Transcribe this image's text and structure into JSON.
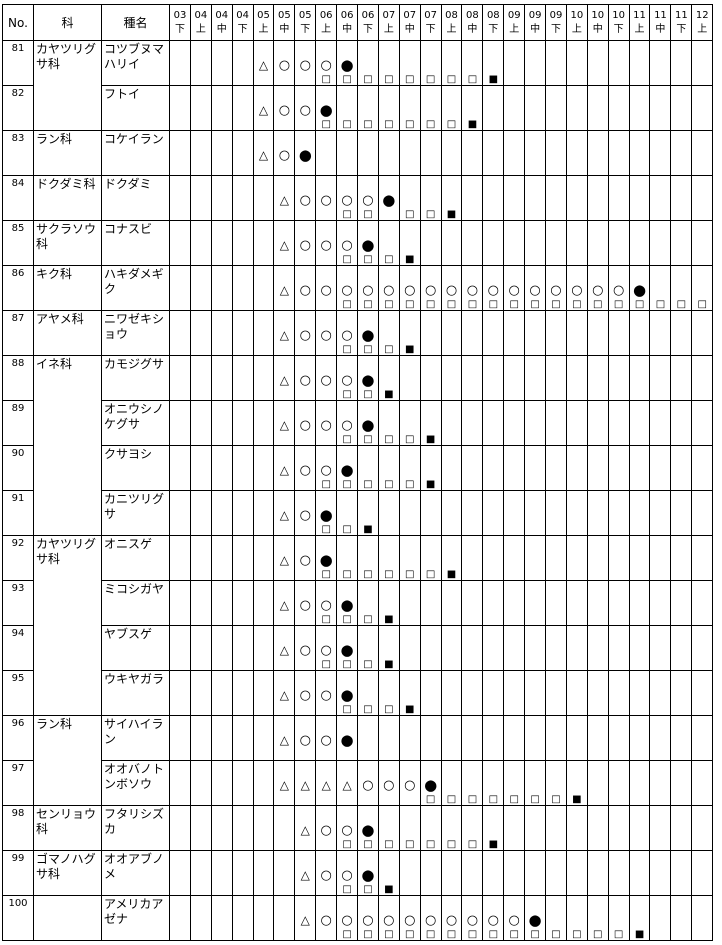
{
  "headers": {
    "no": "No.",
    "family": "科",
    "species": "種名"
  },
  "periods": [
    {
      "m": "03",
      "p": "下"
    },
    {
      "m": "04",
      "p": "上"
    },
    {
      "m": "04",
      "p": "中"
    },
    {
      "m": "04",
      "p": "下"
    },
    {
      "m": "05",
      "p": "上"
    },
    {
      "m": "05",
      "p": "中"
    },
    {
      "m": "05",
      "p": "下"
    },
    {
      "m": "06",
      "p": "上"
    },
    {
      "m": "06",
      "p": "中"
    },
    {
      "m": "06",
      "p": "下"
    },
    {
      "m": "07",
      "p": "上"
    },
    {
      "m": "07",
      "p": "中"
    },
    {
      "m": "07",
      "p": "下"
    },
    {
      "m": "08",
      "p": "上"
    },
    {
      "m": "08",
      "p": "中"
    },
    {
      "m": "08",
      "p": "下"
    },
    {
      "m": "09",
      "p": "上"
    },
    {
      "m": "09",
      "p": "中"
    },
    {
      "m": "09",
      "p": "下"
    },
    {
      "m": "10",
      "p": "上"
    },
    {
      "m": "10",
      "p": "中"
    },
    {
      "m": "10",
      "p": "下"
    },
    {
      "m": "11",
      "p": "上"
    },
    {
      "m": "11",
      "p": "中"
    },
    {
      "m": "11",
      "p": "下"
    },
    {
      "m": "12",
      "p": "上"
    }
  ],
  "rows": [
    {
      "no": "81",
      "family": "カヤツリグサ科",
      "species": "コツブヌマハリイ",
      "family_span": 2,
      "top": "....△○○○●",
      "bottom": ".......□□□□□□□□■"
    },
    {
      "no": "82",
      "species": "フトイ",
      "top": "....△○○●",
      "bottom": ".......□□□□□□□■"
    },
    {
      "no": "83",
      "family": "ラン科",
      "species": "コケイラン",
      "family_span": 1,
      "top": "....△○●",
      "bottom": ""
    },
    {
      "no": "84",
      "family": "ドクダミ科",
      "species": "ドクダミ",
      "family_span": 1,
      "top": ".....△○○○○●",
      "bottom": "........□□.□□■"
    },
    {
      "no": "85",
      "family": "サクラソウ科",
      "species": "コナスビ",
      "family_span": 1,
      "top": ".....△○○○●",
      "bottom": "........□□□■"
    },
    {
      "no": "86",
      "family": "キク科",
      "species": "ハキダメギク",
      "family_span": 1,
      "top": ".....△○○○○○○○○○○○○○○○○●",
      "bottom": "........□□□□□□□□□□□□□□□□□□■"
    },
    {
      "no": "87",
      "family": "アヤメ科",
      "species": "ニワゼキショウ",
      "family_span": 1,
      "top": ".....△○○○●",
      "bottom": "........□□□■"
    },
    {
      "no": "88",
      "family": "イネ科",
      "species": "カモジグサ",
      "family_span": 4,
      "top": ".....△○○○●",
      "bottom": "........□□■"
    },
    {
      "no": "89",
      "species": "オニウシノケグサ",
      "top": ".....△○○○●",
      "bottom": "........□□□□■"
    },
    {
      "no": "90",
      "species": "クサヨシ",
      "top": ".....△○○●",
      "bottom": ".......□□□□□■"
    },
    {
      "no": "91",
      "species": "カニツリグサ",
      "top": ".....△○●",
      "bottom": ".......□□■"
    },
    {
      "no": "92",
      "family": "カヤツリグサ科",
      "species": "オニスゲ",
      "family_span": 4,
      "top": ".....△○●",
      "bottom": ".......□□□□□□■"
    },
    {
      "no": "93",
      "species": "ミコシガヤ",
      "top": ".....△○○●",
      "bottom": ".......□□□■"
    },
    {
      "no": "94",
      "species": "ヤブスゲ",
      "top": ".....△○○●",
      "bottom": ".......□□□■"
    },
    {
      "no": "95",
      "species": "ウキヤガラ",
      "top": ".....△○○●",
      "bottom": "........□□□■"
    },
    {
      "no": "96",
      "family": "ラン科",
      "species": "サイハイラン",
      "family_span": 2,
      "top": ".....△○○●",
      "bottom": ""
    },
    {
      "no": "97",
      "species": "オオバノトンボソウ",
      "top": ".....△△△△○○○●",
      "bottom": "............□□□□□□□■"
    },
    {
      "no": "98",
      "family": "センリョウ科",
      "species": "フタリシズカ",
      "family_span": 1,
      "top": "......△○○●",
      "bottom": "........□□□□□□□■"
    },
    {
      "no": "99",
      "family": "ゴマノハグサ科",
      "species": "オオアブノメ",
      "family_span": 1,
      "top": "......△○○●",
      "bottom": "........□□■"
    },
    {
      "no": "100",
      "family": "",
      "species": "アメリカアゼナ",
      "family_span": 1,
      "top": "......△○○○○○○○○○○●",
      "bottom": "........□□□□□□□□□□□□□□■"
    }
  ]
}
